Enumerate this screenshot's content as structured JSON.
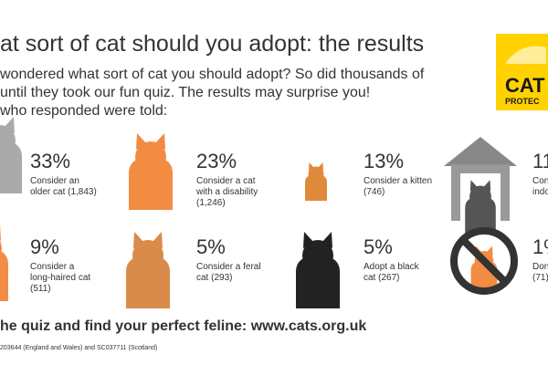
{
  "header": {
    "title": "at sort of cat should you adopt: the results",
    "intro": [
      "wondered what sort of cat you should adopt? So did thousands of",
      "until they took our fun quiz. The results may surprise you!",
      "who responded were told:"
    ]
  },
  "logo": {
    "lines": [
      "CAT",
      "PROTEC"
    ]
  },
  "items": [
    {
      "percent": "33%",
      "text": [
        "Consider an",
        "older cat (1,843)"
      ]
    },
    {
      "percent": "23%",
      "text": [
        "Consider a cat",
        "with a disability",
        "(1,246)"
      ]
    },
    {
      "percent": "13%",
      "text": [
        "Consider a kitten",
        "(746)"
      ]
    },
    {
      "percent": "11",
      "text": [
        "Cons",
        "indo"
      ]
    },
    {
      "percent": "9%",
      "text": [
        "Consider a",
        "long-haired cat",
        "(511)"
      ]
    },
    {
      "percent": "5%",
      "text": [
        "Consider a feral",
        "cat (293)"
      ]
    },
    {
      "percent": "5%",
      "text": [
        "Adopt a black",
        "cat (267)"
      ]
    },
    {
      "percent": "1%",
      "text": [
        "Don'",
        "(71)"
      ]
    }
  ],
  "footer": {
    "cta": "he quiz and find your perfect feline: www.cats.org.uk",
    "legal": "203644 (England and Wales) and SC037711 (Scotland)"
  }
}
